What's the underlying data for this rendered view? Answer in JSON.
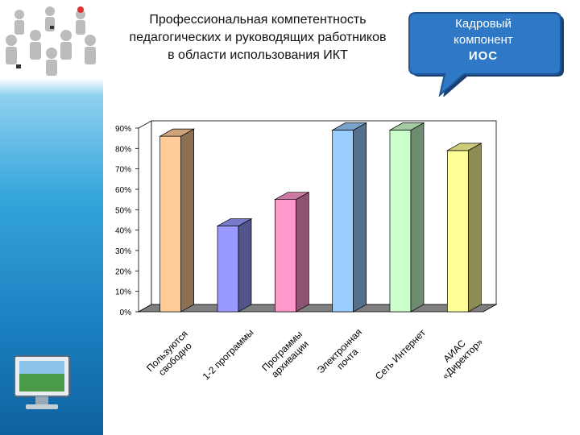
{
  "title": {
    "line1": "Профессиональная компетентность",
    "line2": "педагогических и руководящих работников",
    "line3": "в области использования ИКТ"
  },
  "bubble": {
    "line1": "Кадровый",
    "line2": "компонент",
    "line3": "ИОС"
  },
  "colors": {
    "bubble_fill": "#2e78c6",
    "strip_blue": "#1a7fc0",
    "floor": "#7f7f7f"
  },
  "icons": [
    "people-group-icon",
    "computer-monitor-icon"
  ],
  "chart_data": {
    "type": "bar",
    "style": "3d",
    "categories": [
      [
        "Пользуются",
        "свободно"
      ],
      [
        "1-2 программы"
      ],
      [
        "Программы",
        "архивации"
      ],
      [
        "Электронная",
        "почта"
      ],
      [
        "Сеть Интернет"
      ],
      [
        "АИАС",
        "«Директор»"
      ]
    ],
    "values": [
      86,
      42,
      55,
      89,
      89,
      79
    ],
    "colors": [
      "#ffcc99",
      "#9999ff",
      "#ff99cc",
      "#99ccff",
      "#ccffcc",
      "#ffff99"
    ],
    "ylim": [
      0,
      90
    ],
    "yticks": [
      "0%",
      "10%",
      "20%",
      "30%",
      "40%",
      "50%",
      "60%",
      "70%",
      "80%",
      "90%"
    ],
    "grid": false,
    "legend": "none"
  }
}
